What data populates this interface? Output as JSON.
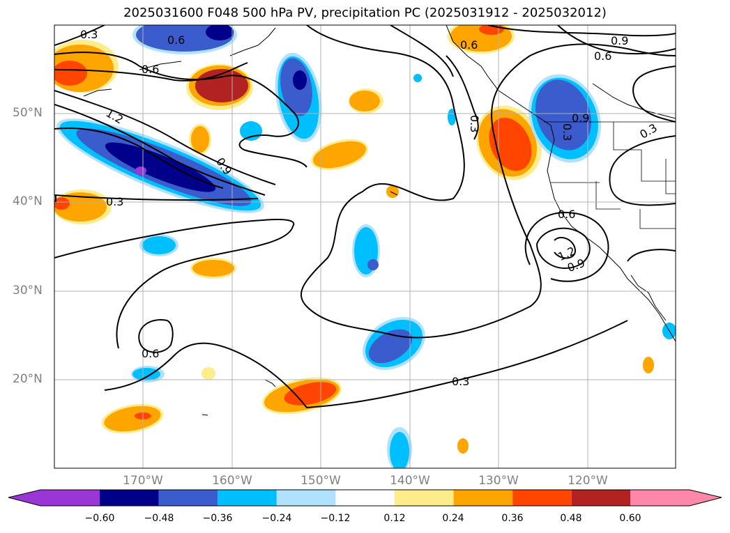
{
  "title": "2025031600 F048 500 hPa PV, precipitation PC (2025031912 - 2025032012)",
  "lat_labels": [
    "50°N",
    "40°N",
    "30°N",
    "20°N"
  ],
  "lon_labels": [
    "170°W",
    "160°W",
    "150°W",
    "140°W",
    "130°W",
    "120°W"
  ],
  "contour_labels": [
    "0.3",
    "0.6",
    "0.6",
    "1.2",
    "0.9",
    "0.3",
    "0.6",
    "0.6",
    "0.9",
    "0.6",
    "0.3",
    "0.3",
    "0.6",
    "1.2",
    "0.9",
    "0.3",
    "0.3",
    "0.9"
  ],
  "colorbar": {
    "tick_labels": [
      "−0.60",
      "−0.48",
      "−0.36",
      "−0.24",
      "−0.12",
      "0.12",
      "0.24",
      "0.36",
      "0.48",
      "0.60"
    ],
    "colors": [
      "#9a36d6",
      "#00008b",
      "#3a5ccc",
      "#00bfff",
      "#b0e2ff",
      "#ffffff",
      "#ffec8b",
      "#ffa500",
      "#ff4500",
      "#b22222",
      "#ff88aa"
    ]
  },
  "legend_colors": {
    "neg_strong": "#00008b",
    "neg_mid": "#3a5ccc",
    "neg_weak": "#00bfff",
    "neg_faint": "#b0e2ff",
    "pos_faint": "#ffec8b",
    "pos_weak": "#ffa500",
    "pos_mid": "#ff4500",
    "pos_strong": "#b22222"
  }
}
